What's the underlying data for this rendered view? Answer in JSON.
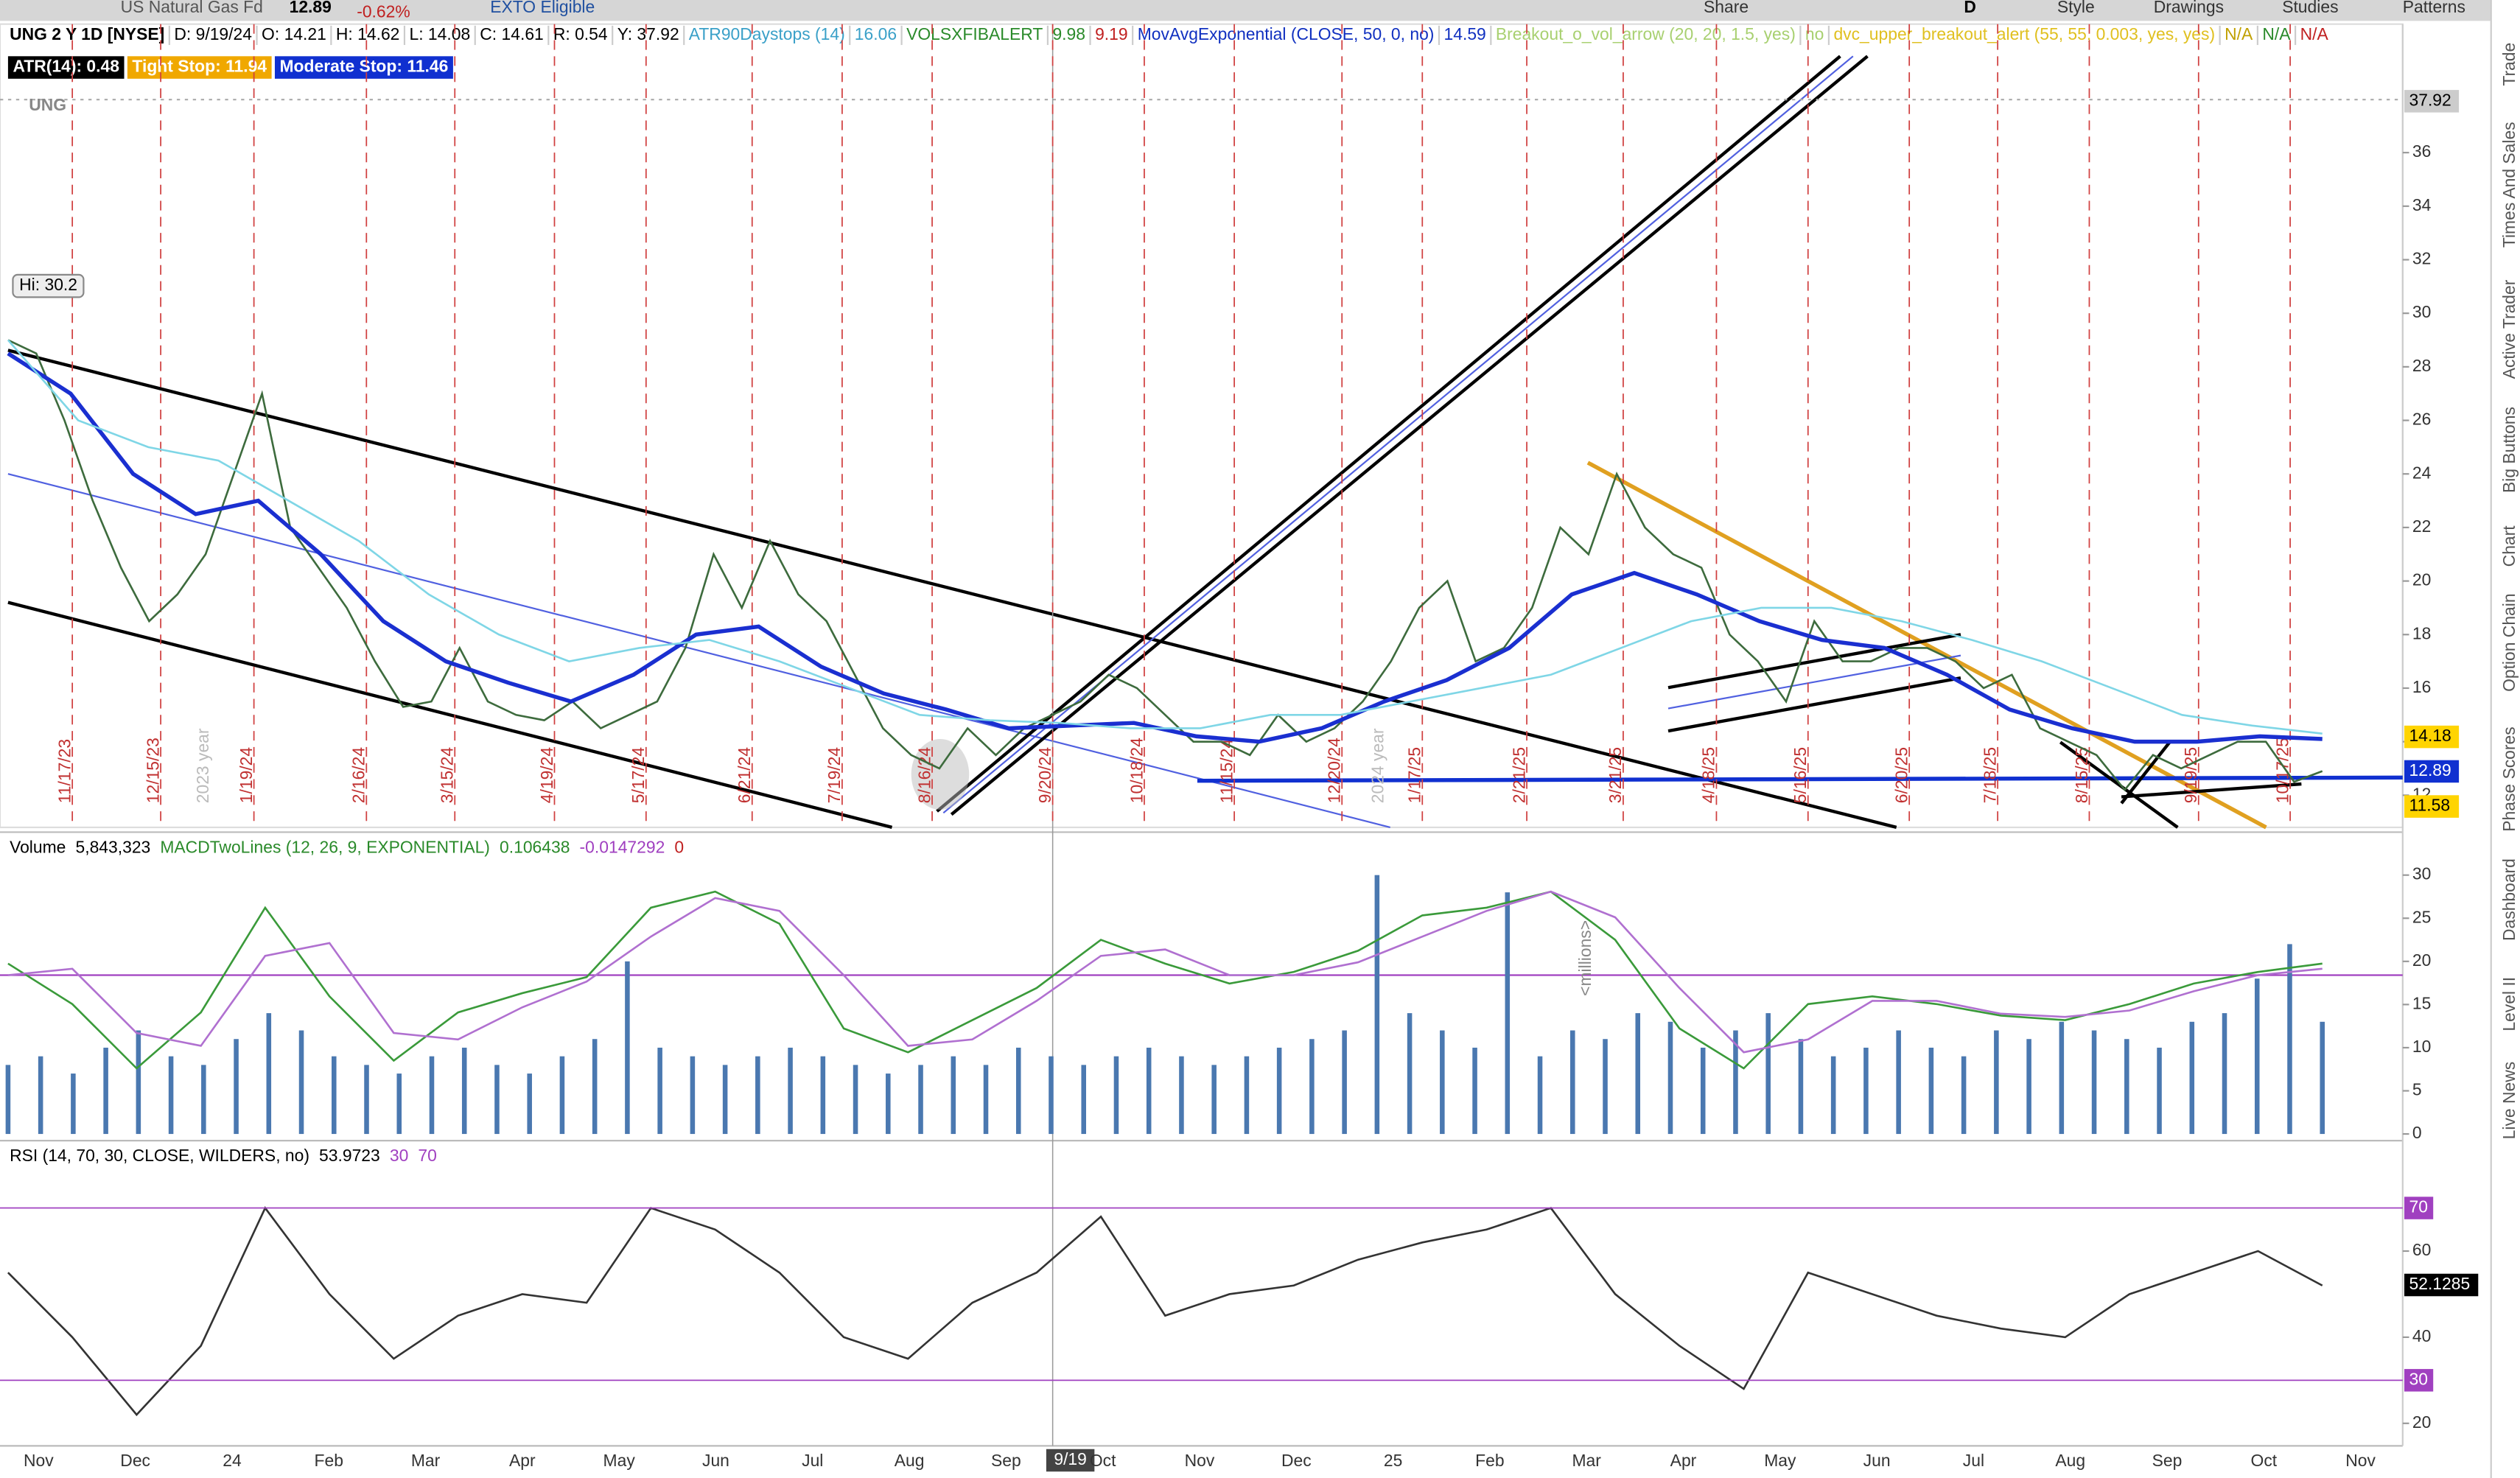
{
  "header": {
    "symbol_name": "US Natural Gas Fd",
    "last": "12.89",
    "change": "-0.62%",
    "badge": "EXTO Eligible",
    "period": "D",
    "buttons": [
      "Share",
      "Style",
      "Drawings",
      "Studies",
      "Patterns"
    ]
  },
  "info": [
    {
      "text": "UNG 2 Y 1D [NYSE]",
      "color": "#000000"
    },
    {
      "text": "D: 9/19/24",
      "color": "#000000"
    },
    {
      "text": "O: 14.21",
      "color": "#000000"
    },
    {
      "text": "H: 14.62",
      "color": "#000000"
    },
    {
      "text": "L: 14.08",
      "color": "#000000"
    },
    {
      "text": "C: 14.61",
      "color": "#000000"
    },
    {
      "text": "R: 0.54",
      "color": "#000000"
    },
    {
      "text": "Y: 37.92",
      "color": "#000000"
    },
    {
      "text": "ATR90Daystops (14)",
      "color": "#3aa0c8"
    },
    {
      "text": "16.06",
      "color": "#3aa0c8"
    },
    {
      "text": "VOLSXFIBALERT",
      "color": "#2a8a2a"
    },
    {
      "text": "9.98",
      "color": "#2a8a2a"
    },
    {
      "text": "9.19",
      "color": "#c02020"
    },
    {
      "text": "MovAvgExponential (CLOSE, 50, 0, no)",
      "color": "#1030c0"
    },
    {
      "text": "14.59",
      "color": "#1030c0"
    },
    {
      "text": "Breakout_o_vol_arrow (20, 20, 1.5, yes)",
      "color": "#a8d070"
    },
    {
      "text": "no",
      "color": "#a8d070"
    },
    {
      "text": "dvc_upper_breakout_alert (55, 55, 0.003, yes, yes)",
      "color": "#e0c020"
    },
    {
      "text": "N/A",
      "color": "#c0a000"
    },
    {
      "text": "N/A",
      "color": "#2a8a2a"
    },
    {
      "text": "N/A",
      "color": "#c02020"
    }
  ],
  "stops": [
    {
      "text": "ATR(14): 0.48",
      "bg": "#000000"
    },
    {
      "text": "Tight Stop: 11.94",
      "bg": "#f0a800"
    },
    {
      "text": "Moderate Stop: 11.46",
      "bg": "#1030d0"
    }
  ],
  "logo": "UNG",
  "sidebar": [
    "Trade",
    "Times And Sales",
    "Active Trader",
    "Big Buttons",
    "Chart",
    "Option Chain",
    "Phase Scores",
    "Dashboard",
    "Level II",
    "Live News"
  ],
  "session_labels": [
    "11/17/23",
    "12/15/23",
    "1/19/24",
    "2/16/24",
    "3/15/24",
    "4/19/24",
    "5/17/24",
    "6/21/24",
    "7/19/24",
    "8/16/24",
    "9/20/24",
    "10/18/24",
    "11/15/24",
    "12/20/24",
    "1/17/25",
    "2/21/25",
    "3/21/25",
    "4/18/25",
    "5/16/25",
    "6/20/25",
    "7/18/25",
    "8/15/25",
    "9/19/25",
    "10/17/25"
  ],
  "year_labels": [
    "2023 year",
    "2024 year"
  ],
  "time_axis": [
    "Nov",
    "Dec",
    "24",
    "Feb",
    "Mar",
    "Apr",
    "May",
    "Jun",
    "Jul",
    "Aug",
    "Sep",
    "Oct",
    "Nov",
    "Dec",
    "25",
    "Feb",
    "Mar",
    "Apr",
    "May",
    "Jun",
    "Jul",
    "Aug",
    "Sep",
    "Oct",
    "Nov"
  ],
  "cursor_date": "9/19",
  "chart_data": [
    {
      "type": "line",
      "ylim": [
        10.8,
        40.8
      ],
      "yticks": [
        12,
        14,
        16,
        18,
        20,
        22,
        24,
        26,
        28,
        30,
        32,
        34,
        36
      ],
      "high_label": "Hi: 30.2",
      "price_labels": [
        {
          "value": 37.92,
          "color": "#cccccc"
        },
        {
          "value": 14.18,
          "color": "#ffd400"
        },
        {
          "value": 12.89,
          "color": "#1030d0"
        },
        {
          "value": 11.58,
          "color": "#ffd400"
        }
      ],
      "series": [
        {
          "color": "#3d6b3d",
          "values": [
            29,
            28.5,
            26,
            23,
            20.5,
            18.5,
            19.5,
            21,
            24,
            27,
            22,
            20.5,
            19,
            17,
            15.3,
            15.5,
            17.5,
            15.5,
            15,
            14.8,
            15.5,
            14.5,
            15,
            15.5,
            17.5,
            21,
            19,
            21.5,
            19.5,
            18.5,
            16.5,
            14.5,
            13.5,
            13,
            14.5,
            13.5,
            14.5,
            15,
            15.5,
            16.5,
            16,
            15,
            14,
            14,
            13.5,
            15,
            14,
            14.5,
            15.5,
            17,
            19,
            20,
            17,
            17.5,
            19,
            22,
            21,
            24,
            22,
            21,
            20.5,
            18,
            17,
            15.5,
            18.5,
            17,
            17,
            17.5,
            17.5,
            17,
            16,
            16.5,
            14.5,
            14,
            13.5,
            12.2,
            13.5,
            13,
            13.5,
            14,
            14,
            12.5,
            12.9
          ]
        },
        {
          "color": "#1a2fd0",
          "values": [
            28.5,
            27,
            24,
            22.5,
            23,
            21,
            18.5,
            17,
            16.2,
            15.5,
            16.5,
            18,
            18.3,
            16.8,
            15.8,
            15.2,
            14.5,
            14.6,
            14.7,
            14.2,
            14,
            14.5,
            15.5,
            16.3,
            17.5,
            19.5,
            20.3,
            19.5,
            18.5,
            17.8,
            17.5,
            16.5,
            15.2,
            14.5,
            14,
            14,
            14.2,
            14.1
          ]
        },
        {
          "color": "#7fd6e6",
          "values": [
            29,
            26,
            25,
            24.5,
            23,
            21.5,
            19.5,
            18,
            17,
            17.5,
            17.8,
            17,
            16,
            15,
            14.8,
            14.7,
            14.5,
            14.5,
            15,
            15,
            15.5,
            16,
            16.5,
            17.5,
            18.5,
            19,
            19,
            18.5,
            17.8,
            17,
            16,
            15,
            14.6,
            14.3
          ]
        }
      ]
    },
    {
      "type": "bar",
      "title": "Volume",
      "readout": "5,843,323",
      "ylim": [
        -0.4,
        34.6
      ],
      "yticks": [
        0,
        5,
        10,
        15,
        20,
        25,
        30
      ],
      "unit_label": "<millions>",
      "color": "#4a78b0",
      "values": [
        8,
        9,
        7,
        10,
        12,
        9,
        8,
        11,
        14,
        12,
        9,
        8,
        7,
        9,
        10,
        8,
        7,
        9,
        11,
        20,
        10,
        9,
        8,
        9,
        10,
        9,
        8,
        7,
        8,
        9,
        8,
        10,
        9,
        8,
        9,
        10,
        9,
        8,
        9,
        10,
        11,
        12,
        30,
        14,
        12,
        10,
        28,
        9,
        12,
        11,
        14,
        13,
        10,
        12,
        14,
        11,
        9,
        10,
        12,
        10,
        9,
        12,
        11,
        13,
        12,
        11,
        10,
        13,
        14,
        18,
        22,
        13
      ]
    },
    {
      "type": "line",
      "title": "MACDTwoLines (12, 26, 9, EXPONENTIAL)",
      "readouts": [
        {
          "text": "0.106438",
          "color": "#2a8a2a"
        },
        {
          "text": "-0.0147292",
          "color": "#a040c0"
        },
        {
          "text": "0",
          "color": "#c02020"
        }
      ],
      "ylim": [
        -2.525,
        2.175
      ],
      "series": [
        {
          "color": "#3a9a3a",
          "values": [
            0.18,
            -0.45,
            -1.45,
            -0.58,
            1.05,
            -0.33,
            -1.33,
            -0.58,
            -0.28,
            -0.03,
            1.05,
            1.3,
            0.8,
            -0.83,
            -1.2,
            -0.7,
            -0.2,
            0.55,
            0.18,
            -0.13,
            0.05,
            0.38,
            0.93,
            1.05,
            1.3,
            0.55,
            -0.83,
            -1.45,
            -0.45,
            -0.33,
            -0.45,
            -0.63,
            -0.7,
            -0.45,
            -0.13,
            0.05,
            0.18
          ]
        },
        {
          "color": "#b070d0",
          "values": [
            0,
            0.1,
            -0.9,
            -1.1,
            0.3,
            0.5,
            -0.9,
            -1,
            -0.5,
            -0.1,
            0.6,
            1.2,
            1,
            0,
            -1.1,
            -1,
            -0.4,
            0.3,
            0.4,
            0,
            0,
            0.2,
            0.6,
            1,
            1.3,
            0.9,
            -0.2,
            -1.2,
            -1,
            -0.4,
            -0.4,
            -0.6,
            -0.65,
            -0.55,
            -0.25,
            0,
            0.1
          ]
        }
      ]
    },
    {
      "type": "line",
      "title": "RSI (14, 70, 30, CLOSE, WILDERS, no)",
      "readout": "53.9723",
      "levels": [
        30,
        70
      ],
      "ylim": [
        12.9,
        84.9
      ],
      "yticks": [
        20,
        40,
        60
      ],
      "last": 52.1285,
      "series": [
        {
          "color": "#333333",
          "values": [
            55,
            40,
            22,
            38,
            70,
            50,
            35,
            45,
            50,
            48,
            70,
            65,
            55,
            40,
            35,
            48,
            55,
            68,
            45,
            50,
            52,
            58,
            62,
            65,
            70,
            50,
            38,
            28,
            55,
            50,
            45,
            42,
            40,
            50,
            55,
            60,
            52
          ]
        }
      ]
    }
  ]
}
